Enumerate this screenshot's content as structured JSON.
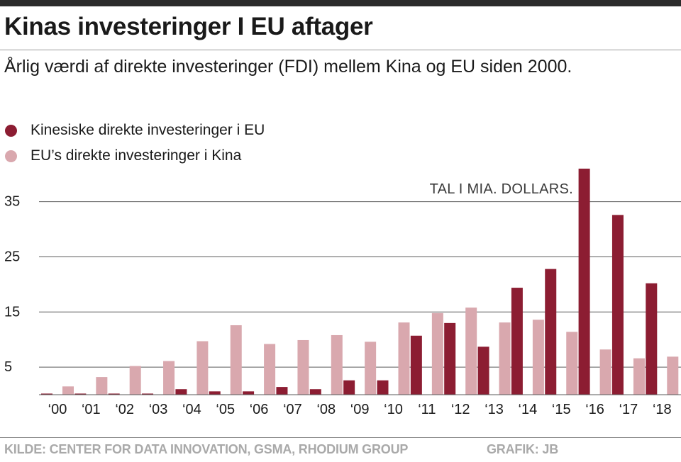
{
  "header": {
    "title": "Kinas investeringer I EU aftager",
    "subtitle": "Årlig værdi af direkte investeringer (FDI) mellem Kina og EU siden 2000."
  },
  "legend": {
    "items": [
      {
        "label": "Kinesiske direkte investeringer i EU",
        "color": "#8c1d32"
      },
      {
        "label": "EU’s direkte investeringer i Kina",
        "color": "#d9a8ae"
      }
    ]
  },
  "chart_data": {
    "type": "bar",
    "annotation": "TAL I MIA. DOLLARS.",
    "categories": [
      "‘00",
      "‘01",
      "‘02",
      "‘03",
      "‘04",
      "‘05",
      "‘06",
      "‘07",
      "‘08",
      "‘09",
      "‘10",
      "‘11",
      "‘12",
      "‘13",
      "‘14",
      "‘15",
      "‘16",
      "‘17",
      "‘18"
    ],
    "series": [
      {
        "name": "Kinesiske direkte investeringer i EU",
        "color": "#8c1d32",
        "values": [
          0.2,
          0.2,
          0.2,
          0.2,
          1.0,
          0.6,
          0.6,
          1.4,
          1.0,
          2.6,
          2.6,
          10.7,
          13.0,
          8.7,
          19.4,
          22.8,
          41.0,
          32.6,
          20.2
        ]
      },
      {
        "name": "EU’s direkte investeringer i Kina",
        "color": "#d9a8ae",
        "values": [
          1.5,
          3.2,
          5.2,
          6.1,
          9.7,
          12.6,
          9.2,
          9.9,
          10.8,
          9.6,
          13.1,
          14.8,
          15.8,
          13.1,
          13.6,
          11.4,
          8.2,
          6.6,
          6.9
        ]
      }
    ],
    "yticks": [
      5,
      15,
      25,
      35
    ],
    "ylim": [
      0,
      41
    ],
    "grid": true
  },
  "footer": {
    "source": "KILDE: CENTER FOR DATA INNOVATION, GSMA, RHODIUM GROUP",
    "credit": "GRAFIK: JB"
  }
}
